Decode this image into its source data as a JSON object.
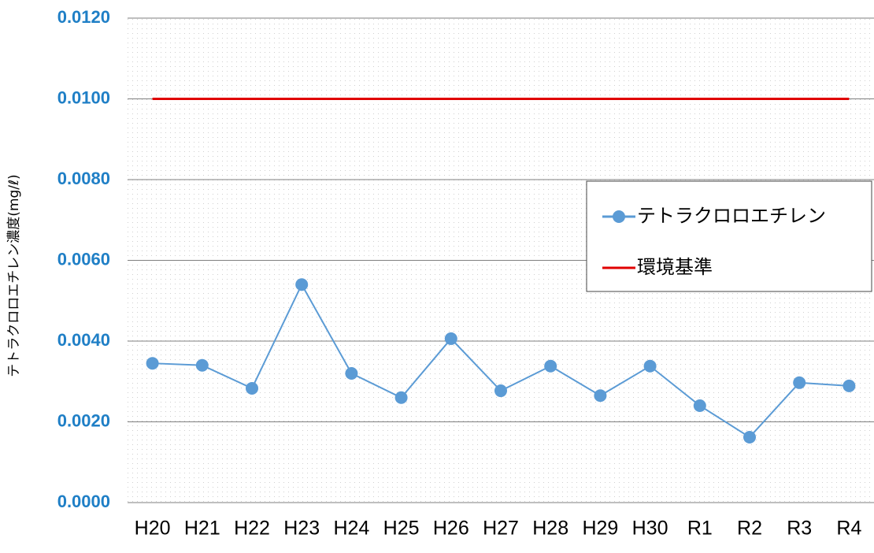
{
  "chart_data": {
    "type": "line",
    "y_label": "テトラクロロエチレン濃度(mg/ℓ)",
    "categories": [
      "H20",
      "H21",
      "H22",
      "H23",
      "H24",
      "H25",
      "H26",
      "H27",
      "H28",
      "H29",
      "H30",
      "R1",
      "R2",
      "R3",
      "R4"
    ],
    "series": [
      {
        "name": "テトラクロロエチレン",
        "color": "#5b9bd5",
        "marker": true,
        "values": [
          0.00345,
          0.0034,
          0.00283,
          0.0054,
          0.0032,
          0.0026,
          0.00406,
          0.00277,
          0.00338,
          0.00265,
          0.00338,
          0.0024,
          0.00162,
          0.00297,
          0.00289
        ]
      },
      {
        "name": "環境基準",
        "color": "#e00000",
        "marker": false,
        "values": [
          0.01,
          0.01,
          0.01,
          0.01,
          0.01,
          0.01,
          0.01,
          0.01,
          0.01,
          0.01,
          0.01,
          0.01,
          0.01,
          0.01,
          0.01
        ]
      }
    ],
    "ylim": [
      0,
      0.012
    ],
    "yticks": [
      {
        "value": 0,
        "label": "0.0000"
      },
      {
        "value": 0.002,
        "label": "0.0020"
      },
      {
        "value": 0.004,
        "label": "0.0040"
      },
      {
        "value": 0.006,
        "label": "0.0060"
      },
      {
        "value": 0.008,
        "label": "0.0080"
      },
      {
        "value": 0.01,
        "label": "0.0100"
      },
      {
        "value": 0.012,
        "label": "0.0120"
      }
    ],
    "grid": true
  }
}
